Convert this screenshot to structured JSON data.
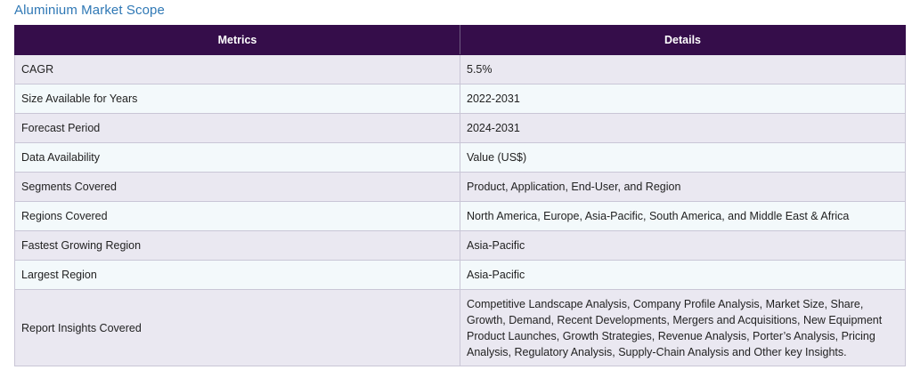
{
  "page": {
    "title": "Aluminium Market Scope"
  },
  "table": {
    "headers": [
      "Metrics",
      "Details"
    ],
    "rows": [
      {
        "metric": "CAGR",
        "detail": "5.5%"
      },
      {
        "metric": "Size Available for Years",
        "detail": "2022-2031"
      },
      {
        "metric": "Forecast Period",
        "detail": "2024-2031"
      },
      {
        "metric": "Data Availability",
        "detail": "Value (US$)"
      },
      {
        "metric": "Segments Covered",
        "detail": "Product, Application, End-User, and Region"
      },
      {
        "metric": "Regions Covered",
        "detail": "North America, Europe, Asia-Pacific, South America, and Middle East & Africa"
      },
      {
        "metric": "Fastest Growing Region",
        "detail": "Asia-Pacific"
      },
      {
        "metric": "Largest Region",
        "detail": "Asia-Pacific"
      },
      {
        "metric": "Report Insights Covered",
        "detail": "Competitive Landscape Analysis, Company Profile Analysis, Market Size, Share, Growth, Demand, Recent Developments, Mergers and Acquisitions, New Equipment Product Launches, Growth Strategies, Revenue Analysis, Porter’s Analysis, Pricing Analysis, Regulatory Analysis, Supply-Chain Analysis and Other key Insights."
      }
    ]
  },
  "colors": {
    "header_bg": "#350d4a",
    "title": "#2f78b5",
    "row_odd": "#eae8f1",
    "row_even": "#f3f9fb"
  }
}
